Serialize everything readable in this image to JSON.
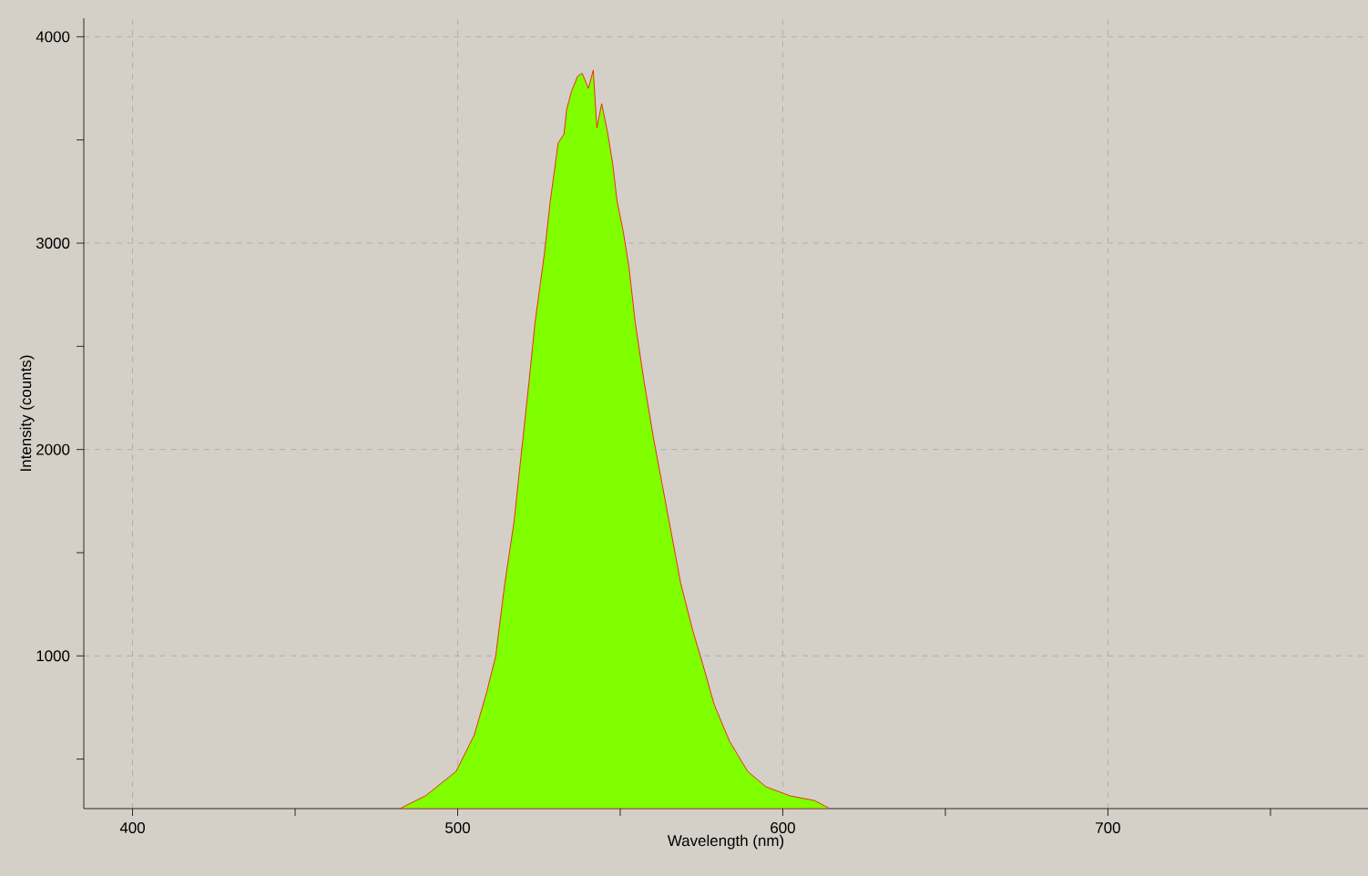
{
  "chart_data": {
    "type": "area",
    "xlabel": "Wavelength (nm)",
    "ylabel": "Intensity (counts)",
    "x": [
      482.7,
      490.1,
      499.5,
      505.1,
      508.9,
      511.7,
      514.5,
      517.3,
      519.7,
      521.9,
      523.8,
      526.6,
      528.5,
      530.9,
      532.7,
      533.5,
      535,
      536.9,
      538.3,
      540.2,
      541.7,
      542.8,
      544.3,
      546.2,
      547.7,
      549,
      550.9,
      552.7,
      554.6,
      557.4,
      560.2,
      563,
      565.8,
      568.6,
      572.4,
      575.2,
      578.9,
      583.6,
      589.2,
      594.8,
      602.2,
      609.8,
      614
    ],
    "series": [
      {
        "color": "#7fff00",
        "values": [
          264,
          322,
          440,
          617,
          823,
          1000,
          1352,
          1646,
          2000,
          2323,
          2617,
          2941,
          3206,
          3485,
          3529,
          3647,
          3735,
          3809,
          3823,
          3750,
          3838,
          3559,
          3676,
          3529,
          3382,
          3206,
          3059,
          2882,
          2617,
          2323,
          2058,
          1823,
          1588,
          1352,
          1117,
          970,
          764,
          587,
          440,
          366,
          322,
          299,
          264
        ]
      }
    ],
    "xlim": [
      385,
      780
    ],
    "ylim": [
      260,
      4090
    ],
    "xticks": [
      400,
      {
        "value": 450,
        "label": null
      },
      500,
      {
        "value": 550,
        "label": null
      },
      600,
      {
        "value": 650,
        "label": null
      },
      700,
      {
        "value": 750,
        "label": null
      }
    ],
    "yticks": [
      {
        "value": 500,
        "label": null
      },
      1000,
      {
        "value": 1500,
        "label": null
      },
      2000,
      {
        "value": 2500,
        "label": null
      },
      3000,
      {
        "value": 3500,
        "label": null
      },
      4000
    ],
    "grid": true
  }
}
